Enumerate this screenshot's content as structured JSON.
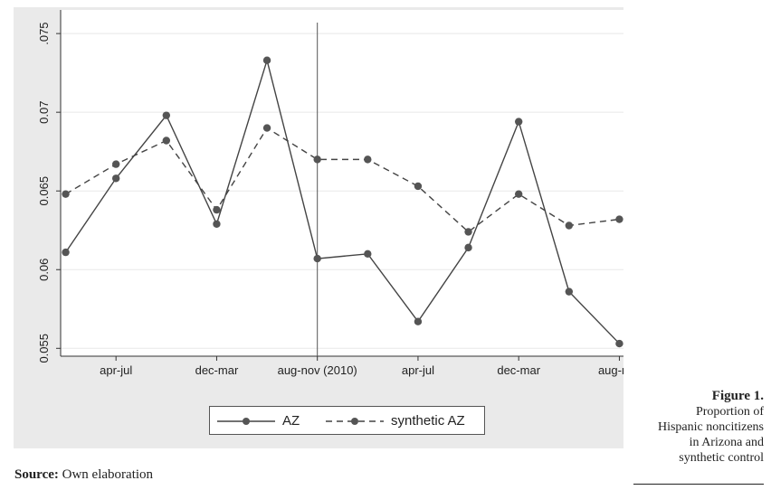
{
  "chart_data": {
    "type": "line",
    "x_labels": [
      "apr-jul",
      "dec-mar",
      "aug-nov (2010)",
      "apr-jul",
      "dec-mar",
      "aug-nov"
    ],
    "x_label_positions": [
      1,
      3,
      5,
      7,
      9,
      11
    ],
    "y_ticks": [
      ".075",
      "0.07",
      "0.065",
      "0.06",
      "0.055"
    ],
    "y_tick_values": [
      0.075,
      0.07,
      0.065,
      0.06,
      0.055
    ],
    "ylim": [
      0.0545,
      0.0765
    ],
    "xlim": [
      -0.1,
      11.1
    ],
    "treatment_line_x": 5,
    "x": [
      0,
      1,
      2,
      3,
      4,
      5,
      6,
      7,
      8,
      9,
      10,
      11
    ],
    "series": [
      {
        "name": "AZ",
        "style": "solid",
        "color": "#444444",
        "values": [
          0.0611,
          0.0658,
          0.0698,
          0.0629,
          0.0733,
          0.0607,
          0.061,
          0.0567,
          0.0614,
          0.0694,
          0.0586,
          0.0553
        ]
      },
      {
        "name": "synthetic AZ",
        "style": "dashed",
        "color": "#444444",
        "values": [
          0.0648,
          0.0667,
          0.0682,
          0.0638,
          0.069,
          0.067,
          0.067,
          0.0653,
          0.0624,
          0.0648,
          0.0628,
          0.0632
        ]
      }
    ],
    "grid": true,
    "legend_position": "bottom"
  },
  "caption": {
    "title": "Figure 1.",
    "lines": [
      "Proportion of",
      "Hispanic noncitizens",
      "in Arizona and",
      "synthetic control"
    ]
  },
  "source": {
    "label": "Source:",
    "text": "Own elaboration"
  }
}
